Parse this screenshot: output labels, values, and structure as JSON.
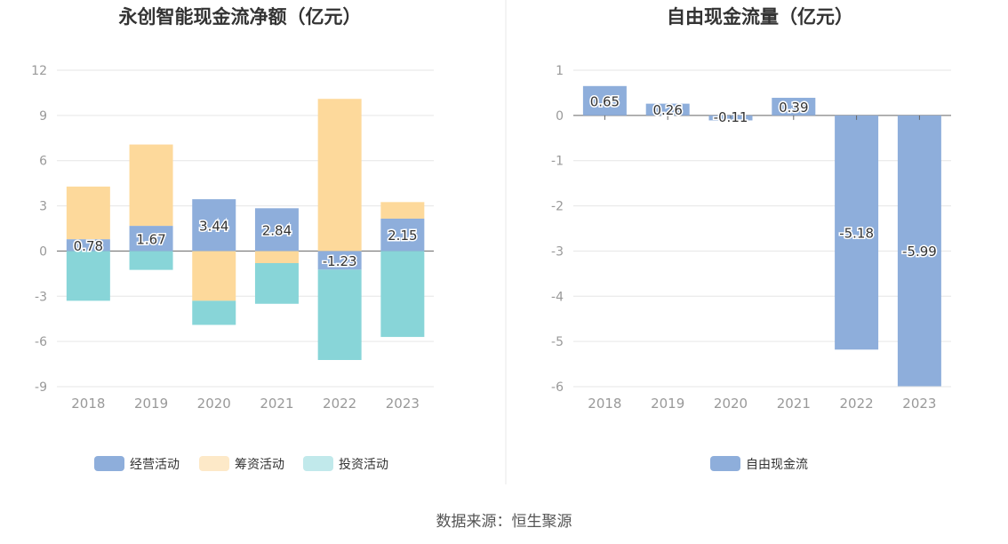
{
  "source_label": "数据来源：恒生聚源",
  "colors": {
    "operating": "#8eaedb",
    "financing": "#fdd99b",
    "investing": "#88d5d8",
    "fcf": "#8eaedb"
  },
  "chart_data": [
    {
      "type": "bar",
      "stacked": true,
      "title": "永创智能现金流净额（亿元）",
      "categories": [
        "2018",
        "2019",
        "2020",
        "2021",
        "2022",
        "2023"
      ],
      "ylim": [
        -9,
        12
      ],
      "yticks": [
        12,
        9,
        6,
        3,
        0,
        -3,
        -6,
        -9
      ],
      "legend_position": "bottom",
      "series": [
        {
          "name": "经营活动",
          "values": [
            0.78,
            1.67,
            3.44,
            2.84,
            -1.23,
            2.15
          ],
          "labels": [
            "0.78",
            "1.67",
            "3.44",
            "2.84",
            "-1.23",
            "2.15"
          ]
        },
        {
          "name": "筹资活动",
          "values": [
            3.5,
            5.4,
            -3.3,
            -0.8,
            10.1,
            1.1
          ]
        },
        {
          "name": "投资活动",
          "values": [
            -3.3,
            -1.25,
            -1.6,
            -2.7,
            -6.0,
            -5.7
          ]
        }
      ]
    },
    {
      "type": "bar",
      "title": "自由现金流量（亿元）",
      "categories": [
        "2018",
        "2019",
        "2020",
        "2021",
        "2022",
        "2023"
      ],
      "ylim": [
        -6,
        1
      ],
      "yticks": [
        1,
        0,
        -1,
        -2,
        -3,
        -4,
        -5,
        -6
      ],
      "legend_position": "bottom",
      "series": [
        {
          "name": "自由现金流",
          "values": [
            0.65,
            0.26,
            -0.11,
            0.39,
            -5.18,
            -5.99
          ],
          "labels": [
            "0.65",
            "0.26",
            "-0.11",
            "0.39",
            "-5.18",
            "-5.99"
          ]
        }
      ]
    }
  ]
}
